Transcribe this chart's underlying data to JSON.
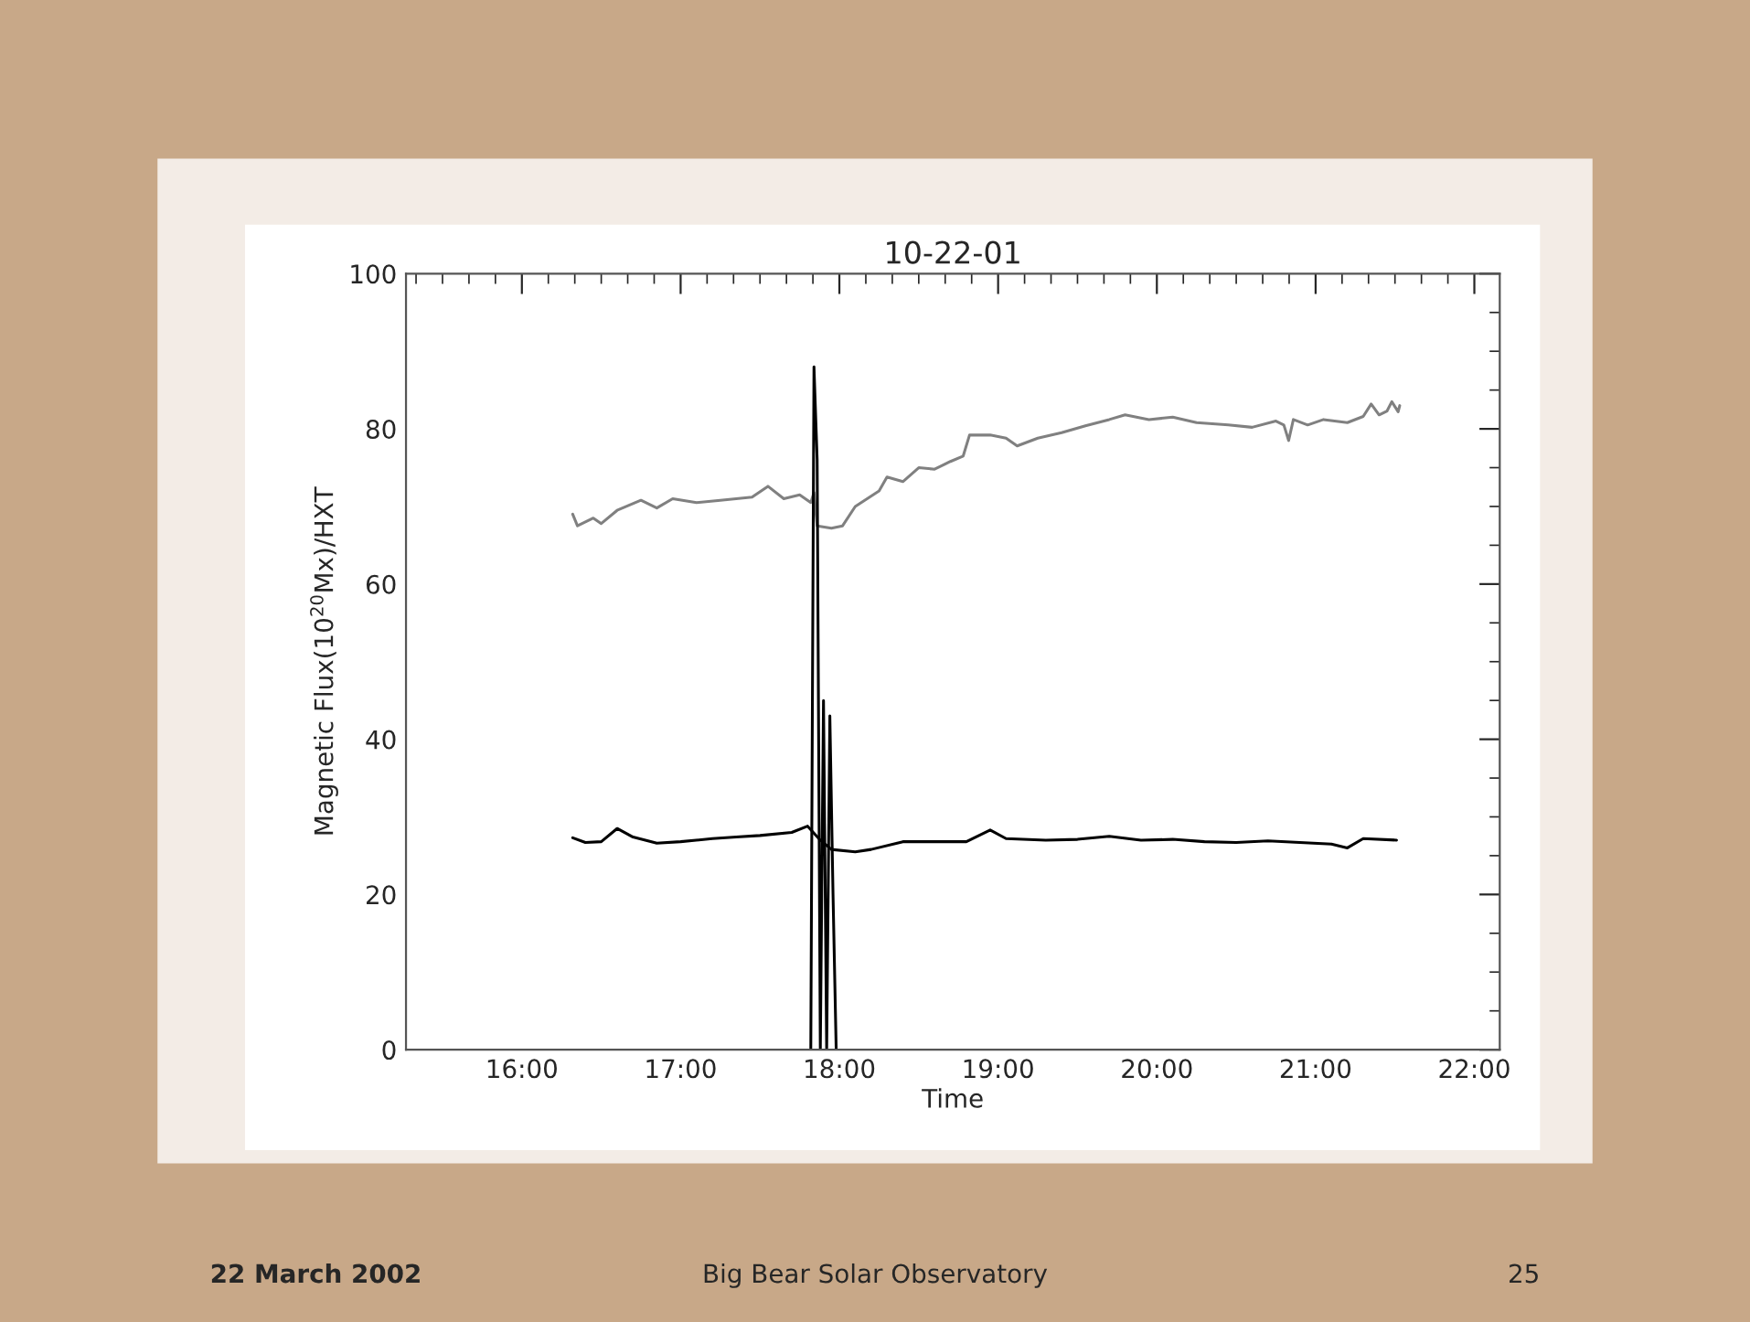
{
  "chart_data": {
    "type": "line",
    "title": "10-22-01",
    "xlabel": "Time",
    "ylabel": "Magnetic Flux(10$^{20}$Mx)/HXT",
    "xlim": [
      15.27,
      22.16
    ],
    "ylim": [
      0,
      100
    ],
    "xticks": [
      {
        "value": 16,
        "label": "16:00"
      },
      {
        "value": 17,
        "label": "17:00"
      },
      {
        "value": 18,
        "label": "18:00"
      },
      {
        "value": 19,
        "label": "19:00"
      },
      {
        "value": 20,
        "label": "20:00"
      },
      {
        "value": 21,
        "label": "21:00"
      },
      {
        "value": 22,
        "label": "22:00"
      }
    ],
    "yticks": [
      0,
      20,
      40,
      60,
      80,
      100
    ],
    "grid": false,
    "legend": false,
    "marker": "none",
    "line_style": "solid",
    "series": [
      {
        "color": "#808080",
        "x": [
          16.32,
          16.35,
          16.45,
          16.5,
          16.6,
          16.75,
          16.85,
          16.95,
          17.1,
          17.25,
          17.45,
          17.55,
          17.65,
          17.75,
          17.82,
          17.84,
          17.86,
          17.95,
          18.02,
          18.1,
          18.25,
          18.3,
          18.4,
          18.5,
          18.6,
          18.7,
          18.78,
          18.82,
          18.95,
          19.05,
          19.12,
          19.25,
          19.4,
          19.55,
          19.7,
          19.8,
          19.95,
          20.1,
          20.25,
          20.45,
          20.6,
          20.75,
          20.8,
          20.83,
          20.86,
          20.95,
          21.05,
          21.2,
          21.3,
          21.35,
          21.4,
          21.45,
          21.48,
          21.52,
          21.53
        ],
        "values": [
          69,
          67.5,
          68.5,
          67.8,
          69.5,
          70.8,
          69.8,
          71,
          70.5,
          70.8,
          71.2,
          72.6,
          71,
          71.5,
          70.5,
          71.8,
          67.5,
          67.2,
          67.5,
          70,
          72,
          73.8,
          73.2,
          75,
          74.8,
          75.8,
          76.5,
          79.2,
          79.2,
          78.8,
          77.8,
          78.8,
          79.5,
          80.4,
          81.2,
          81.8,
          81.2,
          81.5,
          80.8,
          80.5,
          80.2,
          81,
          80.5,
          78.5,
          81.2,
          80.5,
          81.2,
          80.8,
          81.6,
          83.2,
          81.8,
          82.3,
          83.5,
          82.2,
          83
        ]
      },
      {
        "color": "#000000",
        "x": [
          16.32,
          16.4,
          16.5,
          16.6,
          16.7,
          16.85,
          17.0,
          17.2,
          17.35,
          17.5,
          17.7,
          17.8,
          17.88,
          17.95,
          18.1,
          18.2,
          18.4,
          18.6,
          18.8,
          18.95,
          19.05,
          19.3,
          19.5,
          19.7,
          19.9,
          20.1,
          20.3,
          20.5,
          20.7,
          20.9,
          21.1,
          21.2,
          21.3,
          21.51
        ],
        "values": [
          27.3,
          26.7,
          26.8,
          28.5,
          27.4,
          26.6,
          26.8,
          27.2,
          27.4,
          27.6,
          28,
          28.8,
          27,
          25.8,
          25.5,
          25.8,
          26.8,
          26.8,
          26.8,
          28.3,
          27.2,
          27,
          27.1,
          27.5,
          27,
          27.1,
          26.8,
          26.7,
          26.9,
          26.7,
          26.5,
          26,
          27.2,
          27
        ]
      },
      {
        "color": "#000000",
        "x": [
          17.82,
          17.84,
          17.86,
          17.88,
          17.9,
          17.92,
          17.94,
          17.96,
          17.98
        ],
        "values": [
          0,
          88,
          76,
          0,
          45,
          0,
          43,
          20,
          0
        ]
      }
    ],
    "annotations": [
      "22 March 2002",
      "Big Bear Solar Observatory",
      "25"
    ]
  }
}
